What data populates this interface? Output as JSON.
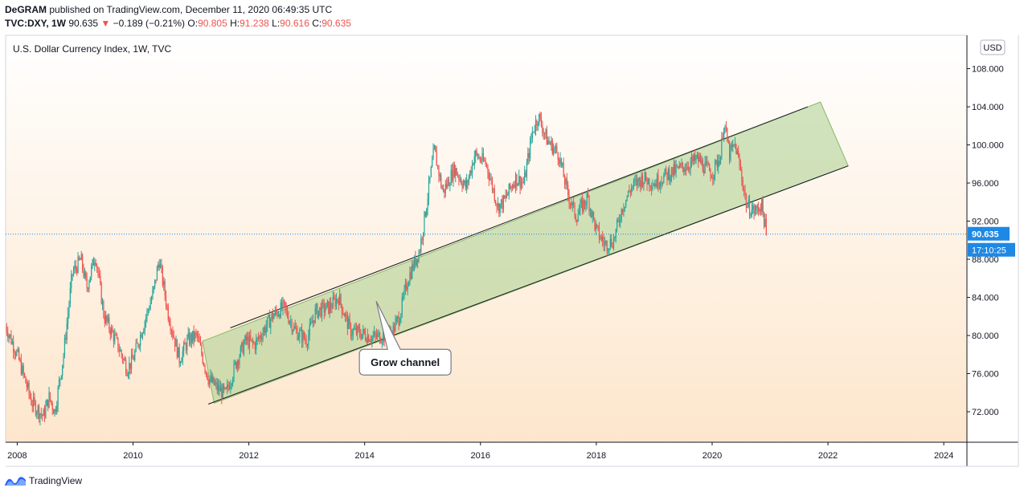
{
  "header": {
    "author": "DeGRAM",
    "published_text": "published on TradingView.com, December 11, 2020 06:49:35 UTC",
    "symbol": "TVC:DXY, 1W",
    "last": "90.635",
    "change": "−0.189 (−0.21%)",
    "o_label": "O:",
    "o": "90.805",
    "h_label": "H:",
    "h": "91.238",
    "l_label": "L:",
    "l": "90.616",
    "c_label": "C:",
    "c": "90.635"
  },
  "chart_data": {
    "type": "candlestick",
    "title": "U.S. Dollar Currency Index, 1W, TVC",
    "currency": "USD",
    "x_range": [
      2007.8,
      2024.4
    ],
    "y_range": [
      68.8,
      111.5
    ],
    "x_ticks": [
      {
        "value": 2008,
        "label": "2008"
      },
      {
        "value": 2010,
        "label": "2010"
      },
      {
        "value": 2012,
        "label": "2012"
      },
      {
        "value": 2014,
        "label": "2014"
      },
      {
        "value": 2016,
        "label": "2016"
      },
      {
        "value": 2018,
        "label": "2018"
      },
      {
        "value": 2020,
        "label": "2020"
      },
      {
        "value": 2022,
        "label": "2022"
      },
      {
        "value": 2024,
        "label": "2024"
      }
    ],
    "y_ticks": [
      {
        "value": 108,
        "label": "108.000"
      },
      {
        "value": 104,
        "label": "104.000"
      },
      {
        "value": 100,
        "label": "100.000"
      },
      {
        "value": 96,
        "label": "96.000"
      },
      {
        "value": 92,
        "label": "92.000"
      },
      {
        "value": 88,
        "label": "88.000"
      },
      {
        "value": 84,
        "label": "84.000"
      },
      {
        "value": 80,
        "label": "80.000"
      },
      {
        "value": 76,
        "label": "76.000"
      },
      {
        "value": 72,
        "label": "72.000"
      }
    ],
    "price_path": [
      [
        2007.8,
        81.0
      ],
      [
        2008.0,
        78.0
      ],
      [
        2008.25,
        73.0
      ],
      [
        2008.45,
        71.5
      ],
      [
        2008.55,
        73.5
      ],
      [
        2008.65,
        72.0
      ],
      [
        2008.8,
        78.0
      ],
      [
        2008.95,
        86.5
      ],
      [
        2009.1,
        88.0
      ],
      [
        2009.2,
        85.0
      ],
      [
        2009.35,
        88.5
      ],
      [
        2009.5,
        82.0
      ],
      [
        2009.7,
        79.5
      ],
      [
        2009.9,
        76.5
      ],
      [
        2010.0,
        77.5
      ],
      [
        2010.15,
        80.5
      ],
      [
        2010.35,
        84.5
      ],
      [
        2010.45,
        88.0
      ],
      [
        2010.6,
        82.5
      ],
      [
        2010.8,
        77.5
      ],
      [
        2010.95,
        79.5
      ],
      [
        2011.1,
        80.0
      ],
      [
        2011.3,
        75.5
      ],
      [
        2011.45,
        74.5
      ],
      [
        2011.6,
        73.8
      ],
      [
        2011.8,
        77.5
      ],
      [
        2011.95,
        79.5
      ],
      [
        2012.1,
        79.0
      ],
      [
        2012.4,
        82.0
      ],
      [
        2012.6,
        83.0
      ],
      [
        2012.8,
        80.5
      ],
      [
        2013.0,
        79.5
      ],
      [
        2013.15,
        82.5
      ],
      [
        2013.4,
        83.0
      ],
      [
        2013.55,
        84.0
      ],
      [
        2013.75,
        80.5
      ],
      [
        2013.95,
        80.2
      ],
      [
        2014.15,
        79.8
      ],
      [
        2014.35,
        80.0
      ],
      [
        2014.45,
        80.0
      ],
      [
        2014.6,
        82.0
      ],
      [
        2014.75,
        86.0
      ],
      [
        2014.95,
        89.0
      ],
      [
        2015.05,
        93.0
      ],
      [
        2015.2,
        99.5
      ],
      [
        2015.35,
        95.0
      ],
      [
        2015.55,
        97.5
      ],
      [
        2015.75,
        95.5
      ],
      [
        2015.9,
        99.0
      ],
      [
        2016.1,
        98.0
      ],
      [
        2016.3,
        93.5
      ],
      [
        2016.4,
        94.0
      ],
      [
        2016.6,
        96.5
      ],
      [
        2016.75,
        96.0
      ],
      [
        2016.9,
        101.5
      ],
      [
        2017.0,
        103.0
      ],
      [
        2017.15,
        100.5
      ],
      [
        2017.35,
        99.0
      ],
      [
        2017.5,
        95.0
      ],
      [
        2017.65,
        92.5
      ],
      [
        2017.85,
        94.5
      ],
      [
        2018.0,
        91.0
      ],
      [
        2018.15,
        89.5
      ],
      [
        2018.3,
        90.0
      ],
      [
        2018.45,
        93.5
      ],
      [
        2018.6,
        95.5
      ],
      [
        2018.8,
        96.5
      ],
      [
        2019.0,
        96.0
      ],
      [
        2019.25,
        97.0
      ],
      [
        2019.45,
        97.5
      ],
      [
        2019.6,
        98.0
      ],
      [
        2019.75,
        98.5
      ],
      [
        2019.9,
        97.5
      ],
      [
        2020.0,
        97.0
      ],
      [
        2020.15,
        99.0
      ],
      [
        2020.2,
        102.5
      ],
      [
        2020.3,
        99.0
      ],
      [
        2020.4,
        100.0
      ],
      [
        2020.5,
        97.0
      ],
      [
        2020.6,
        93.5
      ],
      [
        2020.75,
        93.0
      ],
      [
        2020.85,
        93.8
      ],
      [
        2020.94,
        90.635
      ]
    ],
    "channel": {
      "color": "#a9d08e",
      "upper_line": [
        [
          2011.68,
          80.8
        ],
        [
          2021.65,
          104.0
        ]
      ],
      "lower_line": [
        [
          2011.3,
          72.8
        ],
        [
          2022.35,
          97.8
        ]
      ],
      "fill_polygon": [
        [
          2011.2,
          79.4
        ],
        [
          2021.87,
          104.5
        ],
        [
          2022.35,
          97.8
        ],
        [
          2011.4,
          72.9
        ]
      ]
    },
    "annotation": {
      "text": "Grow channel",
      "pointer": [
        2014.2,
        83.6
      ],
      "box_center": [
        2014.7,
        77.2
      ]
    },
    "last_price": {
      "value": 90.635,
      "label": "90.635",
      "countdown": "17:10:25",
      "color": "#1e88e5"
    }
  },
  "footer": {
    "brand": "TradingView",
    "brand_color": "#2962ff"
  },
  "colors": {
    "up": "#26a69a",
    "down": "#ef5350",
    "bg_top": "#ffffff",
    "bg_bottom": "#fde6cc"
  }
}
